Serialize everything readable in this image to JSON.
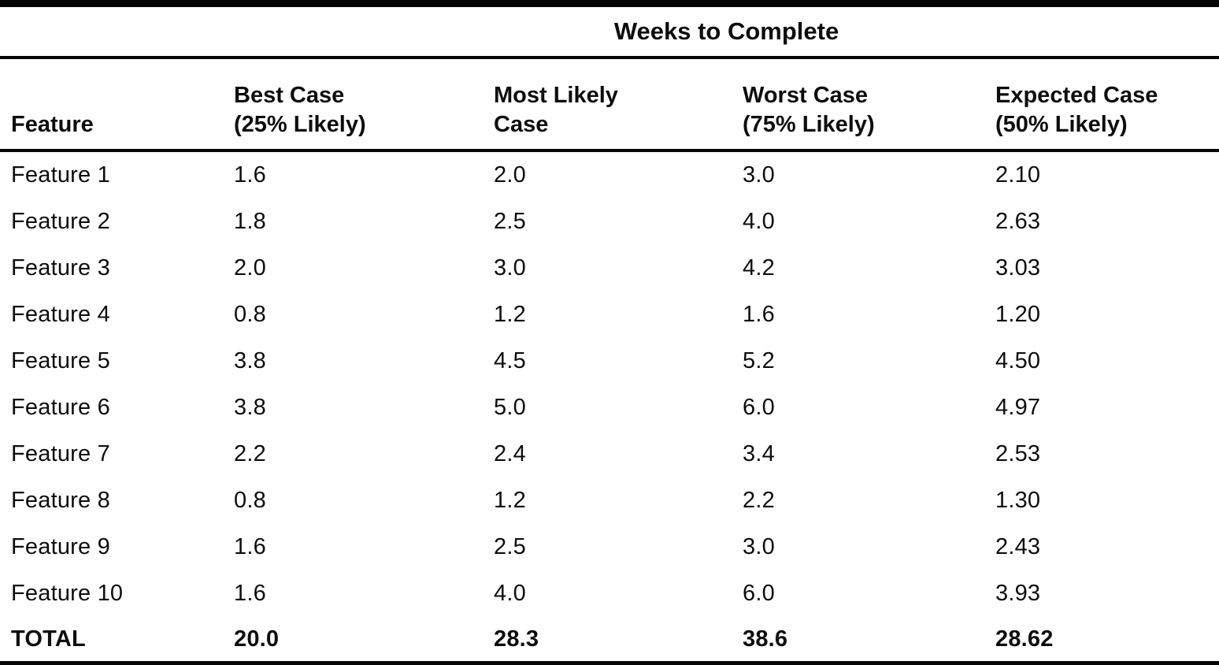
{
  "table": {
    "title": "Weeks to Complete",
    "columns": {
      "feature": {
        "label": "Feature",
        "sublabel": ""
      },
      "best": {
        "label": "Best Case",
        "sublabel": "(25% Likely)"
      },
      "most_likely": {
        "label": "Most Likely",
        "sublabel": "Case"
      },
      "worst": {
        "label": "Worst Case",
        "sublabel": "(75% Likely)"
      },
      "expected": {
        "label": "Expected Case",
        "sublabel": "(50% Likely)"
      }
    },
    "rows": [
      {
        "feature": "Feature 1",
        "best": "1.6",
        "most_likely": "2.0",
        "worst": "3.0",
        "expected": "2.10"
      },
      {
        "feature": "Feature 2",
        "best": "1.8",
        "most_likely": "2.5",
        "worst": "4.0",
        "expected": "2.63"
      },
      {
        "feature": "Feature 3",
        "best": "2.0",
        "most_likely": "3.0",
        "worst": "4.2",
        "expected": "3.03"
      },
      {
        "feature": "Feature 4",
        "best": "0.8",
        "most_likely": "1.2",
        "worst": "1.6",
        "expected": "1.20"
      },
      {
        "feature": "Feature 5",
        "best": "3.8",
        "most_likely": "4.5",
        "worst": "5.2",
        "expected": "4.50"
      },
      {
        "feature": "Feature 6",
        "best": "3.8",
        "most_likely": "5.0",
        "worst": "6.0",
        "expected": "4.97"
      },
      {
        "feature": "Feature 7",
        "best": "2.2",
        "most_likely": "2.4",
        "worst": "3.4",
        "expected": "2.53"
      },
      {
        "feature": "Feature 8",
        "best": "0.8",
        "most_likely": "1.2",
        "worst": "2.2",
        "expected": "1.30"
      },
      {
        "feature": "Feature 9",
        "best": "1.6",
        "most_likely": "2.5",
        "worst": "3.0",
        "expected": "2.43"
      },
      {
        "feature": "Feature 10",
        "best": "1.6",
        "most_likely": "4.0",
        "worst": "6.0",
        "expected": "3.93"
      }
    ],
    "total": {
      "feature": "TOTAL",
      "best": "20.0",
      "most_likely": "28.3",
      "worst": "38.6",
      "expected": "28.62"
    }
  }
}
